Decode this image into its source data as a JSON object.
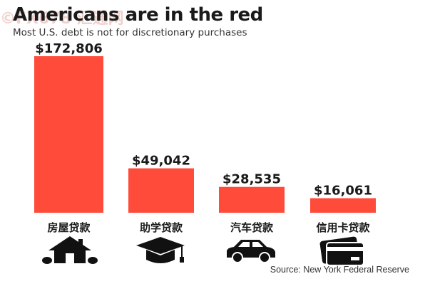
{
  "watermark": "©FX678 汇通网",
  "colors": {
    "bar": "#ff4b3a",
    "text": "#1a1a1a",
    "icon": "#111111"
  },
  "icons": [
    "house-icon",
    "graduation-cap-icon",
    "car-icon",
    "credit-card-icon"
  ],
  "chart_data": {
    "type": "bar",
    "title": "Americans are in the red",
    "subtitle": "Most U.S. debt is not for discretionary purchases",
    "source": "Source: New York Federal Reserve",
    "categories": [
      "房屋贷款",
      "助学贷款",
      "汽车贷款",
      "信用卡贷款"
    ],
    "values": [
      172806,
      49042,
      28535,
      16061
    ],
    "value_labels": [
      "$172,806",
      "$49,042",
      "$28,535",
      "$16,061"
    ],
    "xlabel": "",
    "ylabel": "",
    "ylim": [
      0,
      175000
    ],
    "grid": false,
    "legend": "none"
  }
}
